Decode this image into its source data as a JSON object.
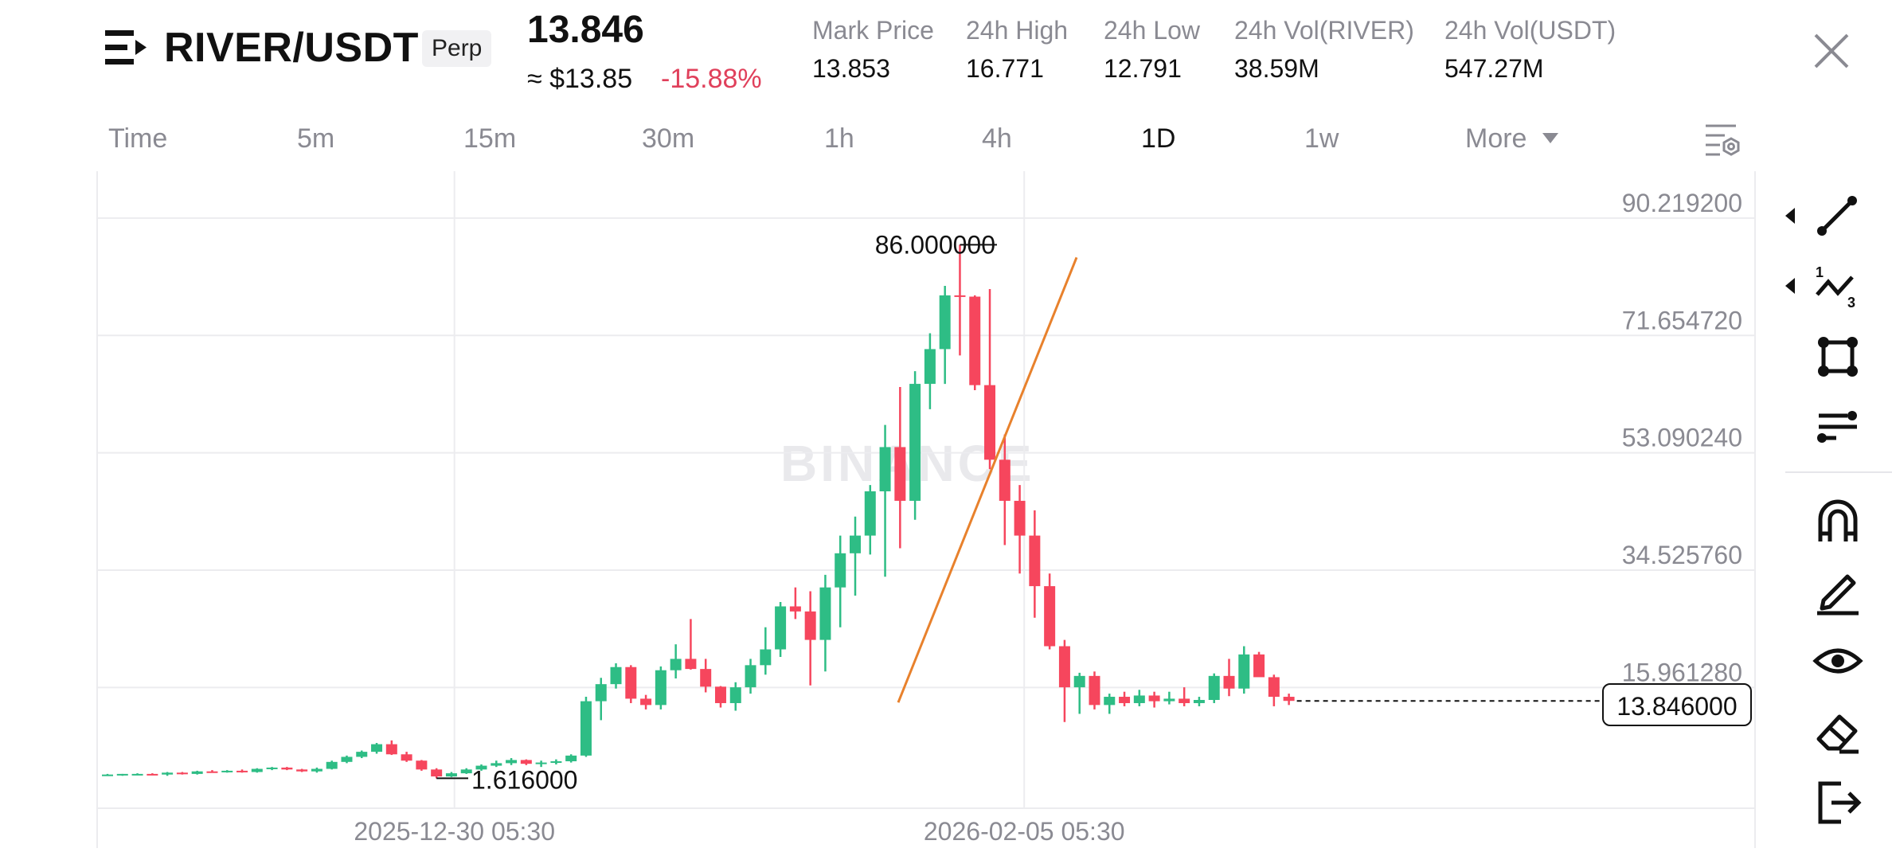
{
  "header": {
    "logo_icon": "menu-lines-icon",
    "pair": "RIVER/USDT",
    "contract_type": "Perp",
    "last_price": "13.846",
    "usd_price": "≈ $13.85",
    "change_pct": "-15.88%",
    "stats": [
      {
        "label": "Mark Price",
        "value": "13.853"
      },
      {
        "label": "24h High",
        "value": "16.771"
      },
      {
        "label": "24h Low",
        "value": "12.791"
      },
      {
        "label": "24h Vol(RIVER)",
        "value": "38.59M"
      },
      {
        "label": "24h Vol(USDT)",
        "value": "547.27M"
      }
    ],
    "close_icon": "close-icon"
  },
  "timeframes": {
    "items": [
      "Time",
      "5m",
      "15m",
      "30m",
      "1h",
      "4h",
      "1D",
      "1w",
      "More"
    ],
    "active": "1D",
    "settings_icon": "chart-settings-icon"
  },
  "watermark": "BINANCE",
  "colors": {
    "up": "#2ebd85",
    "down": "#f6465d",
    "trendline": "#e8812c",
    "grid": "#ececef"
  },
  "toolbar": {
    "icons": [
      "trendline-icon",
      "fib-wave-icon",
      "shape-icon",
      "indicator-lines-icon",
      "magnet-icon",
      "pencil-icon",
      "eye-icon",
      "eraser-icon",
      "exit-icon"
    ]
  },
  "chart_data": {
    "type": "candlestick",
    "interval": "1D",
    "y_ticks": [
      "90.219200",
      "71.654720",
      "53.090240",
      "34.525760",
      "15.961280"
    ],
    "ylim": [
      -3.13,
      97.64
    ],
    "x_ticks": [
      "2025-12-30 05:30",
      "2026-02-05 05:30"
    ],
    "annotations": {
      "high": "86.000000",
      "low": "1.616000",
      "last": "13.846000"
    },
    "candles": [
      [
        2.2,
        2.3,
        2.0,
        2.2
      ],
      [
        2.2,
        2.3,
        2.0,
        2.3
      ],
      [
        2.3,
        2.4,
        2.1,
        2.3
      ],
      [
        2.3,
        2.4,
        2.1,
        2.2
      ],
      [
        2.2,
        2.6,
        2.0,
        2.5
      ],
      [
        2.5,
        2.6,
        2.2,
        2.3
      ],
      [
        2.3,
        2.8,
        2.2,
        2.7
      ],
      [
        2.7,
        2.9,
        2.5,
        2.6
      ],
      [
        2.6,
        2.9,
        2.5,
        2.8
      ],
      [
        2.8,
        3.0,
        2.5,
        2.6
      ],
      [
        2.6,
        3.2,
        2.5,
        3.1
      ],
      [
        3.1,
        3.4,
        2.9,
        3.3
      ],
      [
        3.3,
        3.4,
        2.9,
        3.0
      ],
      [
        3.0,
        3.1,
        2.6,
        2.7
      ],
      [
        2.7,
        3.3,
        2.5,
        3.1
      ],
      [
        3.1,
        4.4,
        3.0,
        4.2
      ],
      [
        4.2,
        5.2,
        4.0,
        5.0
      ],
      [
        5.0,
        6.0,
        4.8,
        5.8
      ],
      [
        5.8,
        7.2,
        5.5,
        7.0
      ],
      [
        7.0,
        7.6,
        5.3,
        5.4
      ],
      [
        5.4,
        5.8,
        4.2,
        4.4
      ],
      [
        4.4,
        4.5,
        2.8,
        3.0
      ],
      [
        3.0,
        3.2,
        1.6,
        1.9
      ],
      [
        1.9,
        2.6,
        1.8,
        2.4
      ],
      [
        2.4,
        3.2,
        2.3,
        3.0
      ],
      [
        3.0,
        3.8,
        2.8,
        3.6
      ],
      [
        3.6,
        4.4,
        3.4,
        4.0
      ],
      [
        4.0,
        4.8,
        3.7,
        4.5
      ],
      [
        4.5,
        4.6,
        3.7,
        3.9
      ],
      [
        3.9,
        4.4,
        3.4,
        4.1
      ],
      [
        4.1,
        4.6,
        3.8,
        4.3
      ],
      [
        4.3,
        5.4,
        4.1,
        5.2
      ],
      [
        5.2,
        14.5,
        5.0,
        13.8
      ],
      [
        13.8,
        17.5,
        10.8,
        16.5
      ],
      [
        16.5,
        19.8,
        15.8,
        19.2
      ],
      [
        19.2,
        19.5,
        13.5,
        14.2
      ],
      [
        14.2,
        14.8,
        12.5,
        13.2
      ],
      [
        13.2,
        19.3,
        12.5,
        18.7
      ],
      [
        18.7,
        22.8,
        17.4,
        20.5
      ],
      [
        20.5,
        26.8,
        18.8,
        18.9
      ],
      [
        18.9,
        20.5,
        15.2,
        16.1
      ],
      [
        16.1,
        16.2,
        12.8,
        13.5
      ],
      [
        13.5,
        16.8,
        12.3,
        16.0
      ],
      [
        16.0,
        20.5,
        15.0,
        19.5
      ],
      [
        19.5,
        25.5,
        18.0,
        22.0
      ],
      [
        22.0,
        29.5,
        20.8,
        28.8
      ],
      [
        28.8,
        31.8,
        26.8,
        28.0
      ],
      [
        28.0,
        31.2,
        16.3,
        23.5
      ],
      [
        23.5,
        33.8,
        18.5,
        31.8
      ],
      [
        31.8,
        40.0,
        25.5,
        37.2
      ],
      [
        37.2,
        43.0,
        30.5,
        40.0
      ],
      [
        40.0,
        48.0,
        37.0,
        47.0
      ],
      [
        47.0,
        57.5,
        33.5,
        54.0
      ],
      [
        54.0,
        63.5,
        38.0,
        45.5
      ],
      [
        45.5,
        66.0,
        42.5,
        64.0
      ],
      [
        64.0,
        72.0,
        60.0,
        69.5
      ],
      [
        69.5,
        79.5,
        64.0,
        78.0
      ],
      [
        78.0,
        86.0,
        68.5,
        77.8
      ],
      [
        77.8,
        78.0,
        63.0,
        63.8
      ],
      [
        63.8,
        79.0,
        50.5,
        52.0
      ],
      [
        52.0,
        56.0,
        38.5,
        45.5
      ],
      [
        45.5,
        48.0,
        34.0,
        40.0
      ],
      [
        40.0,
        44.0,
        27.0,
        32.0
      ],
      [
        32.0,
        34.0,
        22.0,
        22.5
      ],
      [
        22.5,
        23.5,
        10.5,
        16.0
      ],
      [
        16.0,
        18.3,
        11.8,
        17.8
      ],
      [
        17.8,
        18.5,
        12.5,
        13.2
      ],
      [
        13.2,
        15.0,
        11.8,
        14.5
      ],
      [
        14.5,
        15.3,
        13.0,
        13.5
      ],
      [
        13.5,
        15.6,
        13.0,
        14.7
      ],
      [
        14.7,
        15.3,
        12.8,
        13.8
      ],
      [
        13.8,
        15.3,
        13.3,
        14.2
      ],
      [
        14.2,
        16.0,
        13.0,
        13.5
      ],
      [
        13.5,
        14.5,
        13.0,
        14.0
      ],
      [
        14.0,
        18.2,
        13.5,
        17.8
      ],
      [
        17.8,
        20.5,
        14.6,
        15.8
      ],
      [
        15.8,
        22.5,
        15.0,
        21.2
      ],
      [
        21.2,
        21.6,
        17.8,
        17.6
      ],
      [
        17.6,
        18.0,
        13.0,
        14.5
      ],
      [
        14.5,
        15.0,
        13.2,
        13.85
      ]
    ]
  }
}
